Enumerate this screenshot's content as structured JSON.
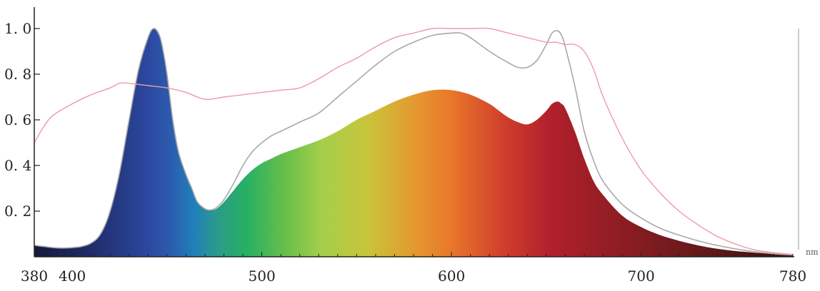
{
  "chart_data": {
    "type": "area",
    "xlabel": "",
    "ylabel": "",
    "x_unit": "nm",
    "xlim": [
      380,
      780
    ],
    "ylim": [
      0,
      1.07
    ],
    "grid": false,
    "x_ticks": [
      {
        "value": 380,
        "label": "380"
      },
      {
        "value": 400,
        "label": "400"
      },
      {
        "value": 500,
        "label": "500"
      },
      {
        "value": 600,
        "label": "600"
      },
      {
        "value": 700,
        "label": "700"
      },
      {
        "value": 780,
        "label": "780"
      }
    ],
    "y_ticks": [
      {
        "value": 0.2,
        "label": "0. 2"
      },
      {
        "value": 0.4,
        "label": "0. 4"
      },
      {
        "value": 0.6,
        "label": "0. 6"
      },
      {
        "value": 0.8,
        "label": "0. 8"
      },
      {
        "value": 1.0,
        "label": "1. 0"
      }
    ],
    "series": [
      {
        "style": "filled-spectrum",
        "x": [
          380,
          385,
          390,
          395,
          400,
          405,
          410,
          415,
          420,
          425,
          430,
          435,
          440,
          443,
          446,
          448,
          450,
          453,
          456,
          460,
          463,
          466,
          470,
          473,
          476,
          480,
          485,
          490,
          495,
          500,
          505,
          510,
          520,
          530,
          540,
          550,
          560,
          570,
          580,
          590,
          600,
          610,
          620,
          625,
          630,
          635,
          640,
          645,
          650,
          653,
          656,
          658,
          660,
          665,
          670,
          675,
          680,
          690,
          700,
          710,
          720,
          730,
          740,
          750,
          760,
          770,
          780
        ],
        "y": [
          0.05,
          0.045,
          0.04,
          0.038,
          0.04,
          0.045,
          0.06,
          0.1,
          0.2,
          0.37,
          0.6,
          0.82,
          0.96,
          1.0,
          0.97,
          0.9,
          0.8,
          0.6,
          0.46,
          0.36,
          0.3,
          0.24,
          0.21,
          0.205,
          0.21,
          0.24,
          0.29,
          0.34,
          0.38,
          0.41,
          0.43,
          0.45,
          0.48,
          0.51,
          0.55,
          0.6,
          0.64,
          0.68,
          0.71,
          0.73,
          0.73,
          0.71,
          0.67,
          0.64,
          0.61,
          0.59,
          0.58,
          0.6,
          0.64,
          0.67,
          0.68,
          0.67,
          0.65,
          0.55,
          0.43,
          0.33,
          0.27,
          0.18,
          0.13,
          0.095,
          0.07,
          0.05,
          0.035,
          0.025,
          0.018,
          0.012,
          0.008
        ]
      },
      {
        "style": "gray-line",
        "color": "#a8a8a8",
        "x": [
          380,
          385,
          390,
          395,
          400,
          405,
          410,
          415,
          420,
          425,
          430,
          435,
          440,
          443,
          446,
          448,
          450,
          453,
          456,
          460,
          463,
          466,
          470,
          473,
          476,
          480,
          485,
          490,
          495,
          500,
          505,
          510,
          520,
          530,
          540,
          550,
          560,
          570,
          580,
          590,
          600,
          605,
          610,
          620,
          630,
          635,
          640,
          645,
          650,
          653,
          656,
          658,
          660,
          665,
          670,
          675,
          680,
          690,
          700,
          710,
          720,
          730,
          740,
          750,
          760,
          770,
          780
        ],
        "y": [
          0.05,
          0.045,
          0.04,
          0.038,
          0.04,
          0.045,
          0.06,
          0.1,
          0.2,
          0.37,
          0.6,
          0.82,
          0.96,
          1.0,
          0.97,
          0.9,
          0.8,
          0.6,
          0.46,
          0.36,
          0.3,
          0.24,
          0.21,
          0.205,
          0.215,
          0.25,
          0.32,
          0.4,
          0.46,
          0.5,
          0.53,
          0.55,
          0.59,
          0.63,
          0.7,
          0.77,
          0.84,
          0.9,
          0.94,
          0.97,
          0.98,
          0.98,
          0.96,
          0.9,
          0.85,
          0.83,
          0.83,
          0.86,
          0.93,
          0.98,
          0.99,
          0.97,
          0.92,
          0.75,
          0.55,
          0.42,
          0.33,
          0.23,
          0.17,
          0.125,
          0.095,
          0.07,
          0.05,
          0.034,
          0.022,
          0.013,
          0.008
        ]
      },
      {
        "style": "pink-line",
        "color": "#ee9aa6",
        "x": [
          380,
          385,
          390,
          400,
          410,
          420,
          425,
          430,
          440,
          450,
          460,
          470,
          480,
          490,
          500,
          510,
          520,
          530,
          540,
          550,
          560,
          570,
          580,
          590,
          600,
          610,
          620,
          630,
          640,
          650,
          655,
          660,
          665,
          670,
          675,
          680,
          690,
          700,
          710,
          720,
          730,
          740,
          750,
          760,
          770,
          780
        ],
        "y": [
          0.5,
          0.57,
          0.62,
          0.67,
          0.71,
          0.74,
          0.76,
          0.76,
          0.75,
          0.74,
          0.72,
          0.69,
          0.7,
          0.71,
          0.72,
          0.73,
          0.74,
          0.78,
          0.83,
          0.87,
          0.92,
          0.96,
          0.98,
          1.0,
          1.0,
          1.0,
          1.0,
          0.98,
          0.96,
          0.94,
          0.94,
          0.93,
          0.93,
          0.9,
          0.82,
          0.7,
          0.52,
          0.38,
          0.28,
          0.2,
          0.14,
          0.09,
          0.055,
          0.03,
          0.018,
          0.01
        ]
      }
    ]
  }
}
